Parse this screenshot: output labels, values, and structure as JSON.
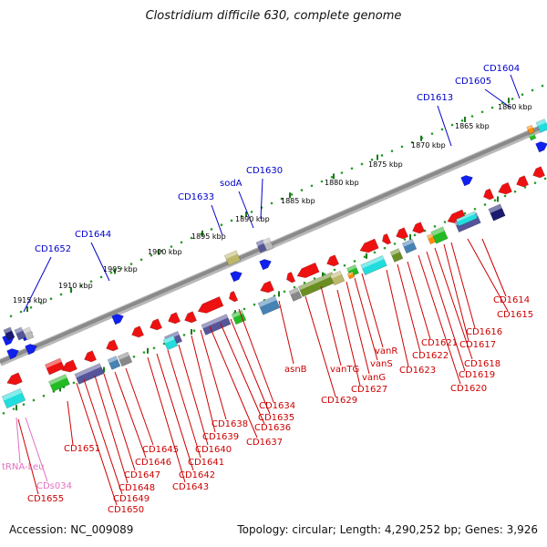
{
  "title": "Clostridium difficile 630, complete genome",
  "footer": {
    "accession": "Accession: NC_009089",
    "stats": "Topology: circular; Length: 4,290,252 bp; Genes: 3,926"
  },
  "colors": {
    "backbone": "#8a8a8a",
    "tick_dots": "#2a9a2a",
    "tick_major": "#1a7a1a",
    "label_forward": "#0000cc",
    "label_reverse": "#cc0000",
    "label_rna": "#e070c0",
    "gene_red": "#ee1111",
    "gene_blue": "#1020ee",
    "gene_cyan": "#22dddd",
    "gene_green": "#22bb22",
    "gene_olive": "#6b8e23",
    "gene_navy": "#1a1a6e",
    "gene_slate": "#55559a",
    "gene_khaki": "#bdb76b",
    "gene_grey": "#888888"
  },
  "scale_labels": [
    {
      "text": "1860 kbp"
    },
    {
      "text": "1865 kbp"
    },
    {
      "text": "1870 kbp"
    },
    {
      "text": "1875 kbp"
    },
    {
      "text": "1880 kbp"
    },
    {
      "text": "1885 kbp"
    },
    {
      "text": "1890 kbp"
    },
    {
      "text": "1895 kbp"
    },
    {
      "text": "1900 kbp"
    },
    {
      "text": "1905 kbp"
    },
    {
      "text": "1910 kbp"
    },
    {
      "text": "1915 kbp"
    }
  ],
  "forward_labels": [
    {
      "text": "CD1604"
    },
    {
      "text": "CD1605"
    },
    {
      "text": "CD1613"
    },
    {
      "text": "CD1630"
    },
    {
      "text": "sodA"
    },
    {
      "text": "CD1633"
    },
    {
      "text": "CD1644"
    },
    {
      "text": "CD1652"
    }
  ],
  "reverse_labels": [
    {
      "text": "CD1614"
    },
    {
      "text": "CD1615"
    },
    {
      "text": "CD1616"
    },
    {
      "text": "CD1617"
    },
    {
      "text": "CD1618"
    },
    {
      "text": "CD1619"
    },
    {
      "text": "CD1620"
    },
    {
      "text": "CD1621"
    },
    {
      "text": "CD1622"
    },
    {
      "text": "CD1623"
    },
    {
      "text": "vanR"
    },
    {
      "text": "vanS"
    },
    {
      "text": "vanG"
    },
    {
      "text": "vanTG"
    },
    {
      "text": "CD1627"
    },
    {
      "text": "CD1629"
    },
    {
      "text": "asnB"
    },
    {
      "text": "CD1634"
    },
    {
      "text": "CD1635"
    },
    {
      "text": "CD1636"
    },
    {
      "text": "CD1637"
    },
    {
      "text": "CD1638"
    },
    {
      "text": "CD1639"
    },
    {
      "text": "CD1640"
    },
    {
      "text": "CD1641"
    },
    {
      "text": "CD1642"
    },
    {
      "text": "CD1643"
    },
    {
      "text": "CD1645"
    },
    {
      "text": "CD1646"
    },
    {
      "text": "CD1647"
    },
    {
      "text": "CD1648"
    },
    {
      "text": "CD1649"
    },
    {
      "text": "CD1650"
    },
    {
      "text": "CD1651"
    },
    {
      "text": "CD1655"
    }
  ],
  "rna_labels": [
    {
      "text": "tRNA-Leu"
    },
    {
      "text": "CDs034"
    }
  ]
}
